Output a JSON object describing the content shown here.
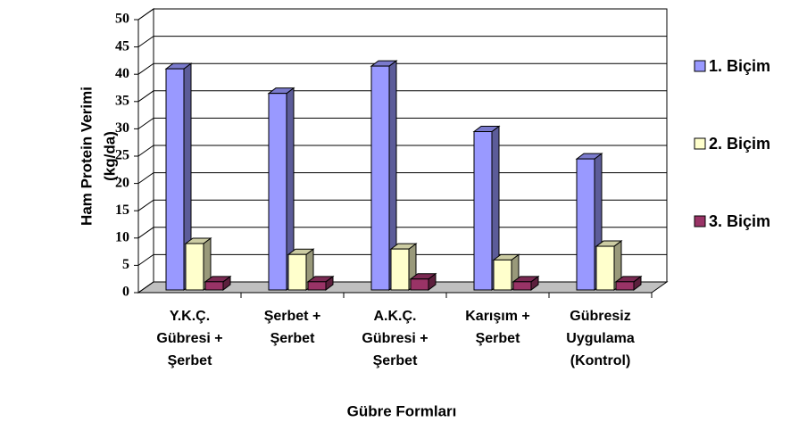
{
  "chart_data": {
    "type": "bar3d",
    "categories": [
      [
        "Y.K.Ç.",
        "Gübresi +",
        "Şerbet"
      ],
      [
        "Şerbet +",
        "Şerbet"
      ],
      [
        "A.K.Ç.",
        "Gübresi +",
        "Şerbet"
      ],
      [
        "Karışım +",
        "Şerbet"
      ],
      [
        "Gübresiz",
        "Uygulama",
        "(Kontrol)"
      ]
    ],
    "series": [
      {
        "name": "1. Biçim",
        "color": "#9999ff",
        "values": [
          40.5,
          36,
          41,
          29,
          24
        ]
      },
      {
        "name": "2. Biçim",
        "color": "#ffffcc",
        "values": [
          8.5,
          6.5,
          7.5,
          5.5,
          8
        ]
      },
      {
        "name": "3. Biçim",
        "color": "#993366",
        "values": [
          1.5,
          1.5,
          2,
          1.5,
          1.5
        ]
      }
    ],
    "ylim": [
      0,
      50
    ],
    "yticks": [
      0,
      5,
      10,
      15,
      20,
      25,
      30,
      35,
      40,
      45,
      50
    ],
    "grid": true,
    "ylabel": [
      "Ham Protein Verimi",
      "(kg/da)"
    ],
    "xlabel": "Gübre Formları",
    "legend": "right"
  }
}
